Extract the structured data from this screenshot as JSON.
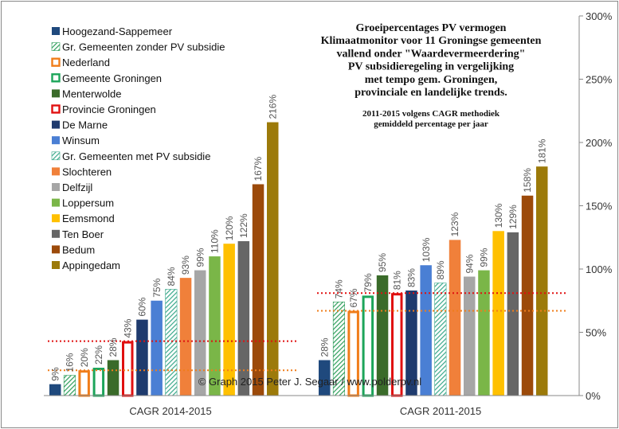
{
  "chart_data": {
    "type": "bar",
    "title_lines": [
      "Groeipercentages PV vermogen",
      "Klimaatmonitor voor 11 Groningse gemeenten",
      "vallend onder \"Waardevermeerdering\"",
      "PV subsidieregeling in vergelijking",
      "met tempo gem. Groningen,",
      "provinciale en landelijke trends."
    ],
    "subtitle_lines": [
      "2011-2015 volgens CAGR methodiek",
      "gemiddeld percentage per jaar"
    ],
    "copyright": "© Graph 2015 Peter J. Segaar / www.polderpv.nl",
    "categories": [
      "CAGR 2014-2015",
      "CAGR 2011-2015"
    ],
    "ylim": [
      0,
      300
    ],
    "y_axis_side": "right",
    "y_ticks": [
      "0%",
      "50%",
      "100%",
      "150%",
      "200%",
      "250%",
      "300%"
    ],
    "y_tick_values": [
      0,
      50,
      100,
      150,
      200,
      250,
      300
    ],
    "legend_position": "left",
    "series": [
      {
        "name": "Hoogezand-Sappemeer",
        "values": [
          9,
          28
        ],
        "labels": [
          "9%",
          "28%"
        ],
        "color": "#1f497d",
        "style": "solid"
      },
      {
        "name": "Gr. Gemeenten zonder PV subsidie",
        "values": [
          16,
          74
        ],
        "labels": [
          "16%",
          "74%"
        ],
        "color": "#2e9e5b",
        "style": "hatch"
      },
      {
        "name": "Nederland",
        "values": [
          20,
          67
        ],
        "labels": [
          "20%",
          "67%"
        ],
        "color": "#f07d1a",
        "style": "outline"
      },
      {
        "name": "Gemeente Groningen",
        "values": [
          22,
          79
        ],
        "labels": [
          "22%",
          "79%"
        ],
        "color": "#1ca55a",
        "style": "outline"
      },
      {
        "name": "Menterwolde",
        "values": [
          28,
          95
        ],
        "labels": [
          "28%",
          "95%"
        ],
        "color": "#3a6b2a",
        "style": "solid"
      },
      {
        "name": "Provincie Groningen",
        "values": [
          43,
          81
        ],
        "labels": [
          "43%",
          "81%"
        ],
        "color": "#e01010",
        "style": "outline"
      },
      {
        "name": "De Marne",
        "values": [
          60,
          83
        ],
        "labels": [
          "60%",
          "83%"
        ],
        "color": "#1f3b6e",
        "style": "solid"
      },
      {
        "name": "Winsum",
        "values": [
          75,
          103
        ],
        "labels": [
          "75%",
          "103%"
        ],
        "color": "#4a7fd4",
        "style": "solid"
      },
      {
        "name": "Gr. Gemeenten met PV subsidie",
        "values": [
          84,
          89
        ],
        "labels": [
          "84%",
          "89%"
        ],
        "color": "#3aa88a",
        "style": "hatch"
      },
      {
        "name": "Slochteren",
        "values": [
          93,
          123
        ],
        "labels": [
          "93%",
          "123%"
        ],
        "color": "#f0803a",
        "style": "solid"
      },
      {
        "name": "Delfzijl",
        "values": [
          99,
          94
        ],
        "labels": [
          "99%",
          "94%"
        ],
        "color": "#a6a6a6",
        "style": "solid"
      },
      {
        "name": "Loppersum",
        "values": [
          110,
          99
        ],
        "labels": [
          "110%",
          "99%"
        ],
        "color": "#7ab648",
        "style": "solid"
      },
      {
        "name": "Eemsmond",
        "values": [
          120,
          130
        ],
        "labels": [
          "120%",
          "130%"
        ],
        "color": "#ffc000",
        "style": "solid"
      },
      {
        "name": "Ten Boer",
        "values": [
          122,
          129
        ],
        "labels": [
          "122%",
          "129%"
        ],
        "color": "#666666",
        "style": "solid"
      },
      {
        "name": "Bedum",
        "values": [
          167,
          158
        ],
        "labels": [
          "167%",
          "158%"
        ],
        "color": "#9c4a0a",
        "style": "solid"
      },
      {
        "name": "Appingedam",
        "values": [
          216,
          181
        ],
        "labels": [
          "216%",
          "181%"
        ],
        "color": "#9c7a0a",
        "style": "solid"
      }
    ],
    "reference_lines": [
      {
        "ref_series": "Provincie Groningen",
        "color": "#e01010"
      },
      {
        "ref_series": "Nederland",
        "color": "#f07d1a"
      }
    ],
    "grid": false
  }
}
